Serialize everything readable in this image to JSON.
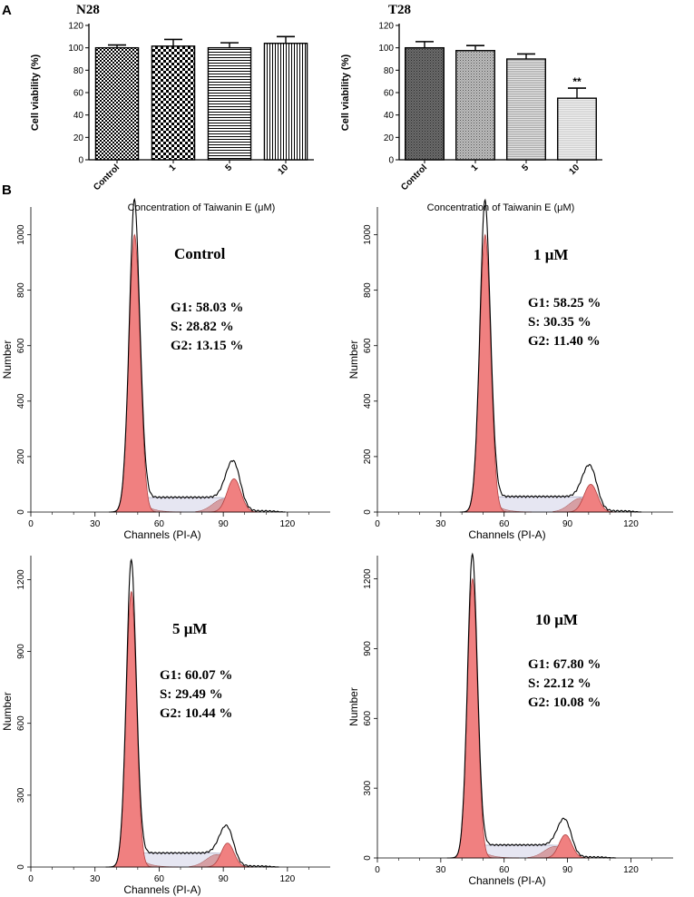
{
  "panels": {
    "a": "A",
    "b": "B"
  },
  "chart_data": [
    {
      "type": "bar",
      "panel": "A",
      "title": "N28",
      "xlabel": "Concentration of Taiwanin E (μM)",
      "ylabel": "Cell viability (%)",
      "ylim": [
        0,
        120
      ],
      "yticks": [
        "0",
        "20",
        "40",
        "60",
        "80",
        "100",
        "120"
      ],
      "categories": [
        "Control",
        "1",
        "5",
        "10"
      ],
      "values": [
        100,
        101.5,
        100,
        104
      ],
      "errors": [
        2.5,
        6,
        4.5,
        6
      ],
      "patterns": [
        "checker-small",
        "checker-large",
        "horizontal-lines",
        "vertical-lines"
      ],
      "significance": [
        "",
        "",
        "",
        ""
      ]
    },
    {
      "type": "bar",
      "panel": "A",
      "title": "T28",
      "xlabel": "Concentration of Taiwanin E (μM)",
      "ylabel": "Cell viability (%)",
      "ylim": [
        0,
        120
      ],
      "yticks": [
        "0",
        "20",
        "40",
        "60",
        "80",
        "100",
        "120"
      ],
      "categories": [
        "Control",
        "1",
        "5",
        "10"
      ],
      "values": [
        100,
        97.5,
        90,
        55
      ],
      "errors": [
        5.5,
        4.5,
        4.5,
        9
      ],
      "patterns": [
        "dark-dots",
        "medium-dots",
        "fine-lines",
        "light-lines"
      ],
      "significance": [
        "",
        "",
        "",
        "**"
      ]
    },
    {
      "type": "histogram",
      "panel": "B",
      "label": "Control",
      "xlabel": "Channels (PI-A)",
      "ylabel": "Number",
      "xlim": [
        0,
        140
      ],
      "ylim": [
        0,
        1100
      ],
      "xticks": [
        "0",
        "30",
        "60",
        "90",
        "120"
      ],
      "yticks": [
        "0",
        "200",
        "400",
        "600",
        "800",
        "1000"
      ],
      "g1_peak": {
        "center": 48.5,
        "height": 1000,
        "width": 2.6
      },
      "g2_peak": {
        "center": 95,
        "height": 120,
        "width": 3.2
      },
      "s_phase_level": 52,
      "total_peak": 1090,
      "stats": [
        "G1: 58.03 %",
        "S: 28.82 %",
        "G2: 13.15 %"
      ]
    },
    {
      "type": "histogram",
      "panel": "B",
      "label": "1 μM",
      "xlabel": "Channels (PI-A)",
      "ylabel": "Number",
      "xlim": [
        0,
        140
      ],
      "ylim": [
        0,
        1100
      ],
      "xticks": [
        "0",
        "30",
        "60",
        "90",
        "120"
      ],
      "yticks": [
        "0",
        "200",
        "400",
        "600",
        "800",
        "1000"
      ],
      "g1_peak": {
        "center": 51,
        "height": 1000,
        "width": 2.6
      },
      "g2_peak": {
        "center": 101,
        "height": 100,
        "width": 3.2
      },
      "s_phase_level": 55,
      "total_peak": 1085,
      "stats": [
        "G1: 58.25 %",
        "S: 30.35 %",
        "G2: 11.40 %"
      ]
    },
    {
      "type": "histogram",
      "panel": "B",
      "label": "5 μM",
      "xlabel": "Channels (PI-A)",
      "ylabel": "Number",
      "xlim": [
        0,
        140
      ],
      "ylim": [
        0,
        1300
      ],
      "xticks": [
        "0",
        "30",
        "60",
        "90",
        "120"
      ],
      "yticks": [
        "0",
        "300",
        "600",
        "900",
        "1200"
      ],
      "g1_peak": {
        "center": 47,
        "height": 1150,
        "width": 2.4
      },
      "g2_peak": {
        "center": 92,
        "height": 100,
        "width": 3.0
      },
      "s_phase_level": 58,
      "total_peak": 1240,
      "stats": [
        "G1: 60.07 %",
        "S: 29.49 %",
        "G2: 10.44 %"
      ]
    },
    {
      "type": "histogram",
      "panel": "B",
      "label": "10 μM",
      "xlabel": "Channels (PI-A)",
      "ylabel": "Number",
      "xlim": [
        0,
        140
      ],
      "ylim": [
        0,
        1300
      ],
      "xticks": [
        "0",
        "30",
        "60",
        "90",
        "120"
      ],
      "yticks": [
        "0",
        "300",
        "600",
        "900",
        "1200"
      ],
      "g1_peak": {
        "center": 45,
        "height": 1200,
        "width": 2.4
      },
      "g2_peak": {
        "center": 89,
        "height": 100,
        "width": 3.0
      },
      "s_phase_level": 55,
      "total_peak": 1265,
      "stats": [
        "G1: 67.80 %",
        "S: 22.12 %",
        "G2: 10.08 %"
      ]
    }
  ],
  "colors": {
    "peak_fill": "#f08080",
    "peak_fill_dark": "#c86464",
    "s_phase_fill": "#e6e6f2",
    "outline": "#000000",
    "axis": "#000000"
  }
}
